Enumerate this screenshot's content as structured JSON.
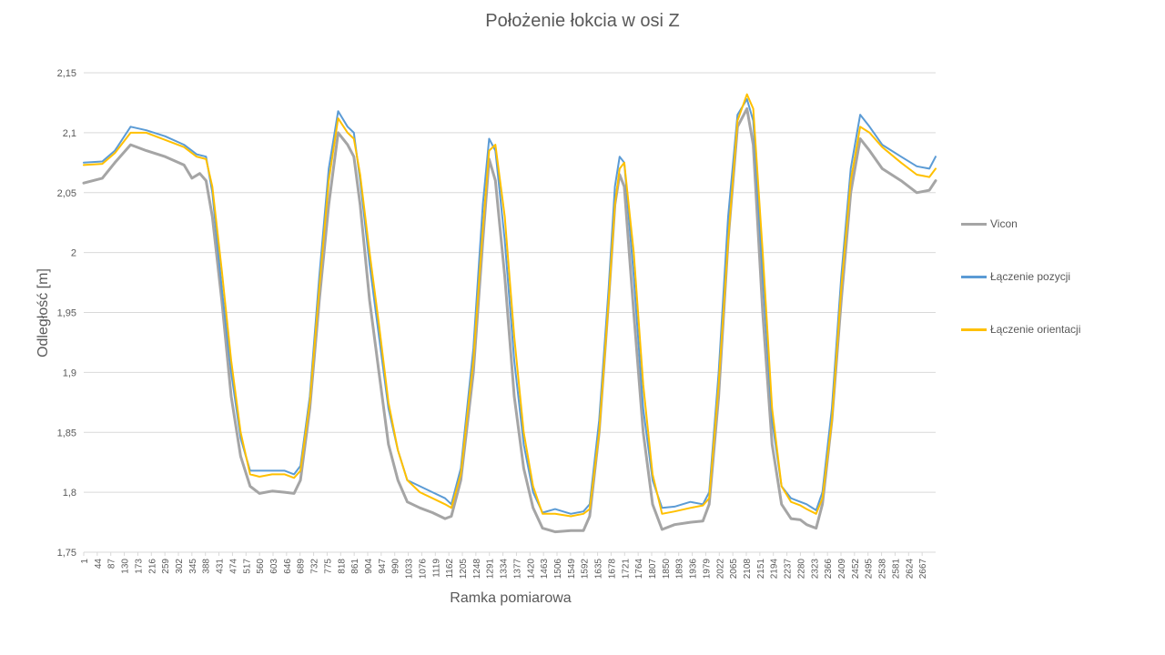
{
  "chart_data": {
    "type": "line",
    "title": "Położenie łokcia w osi Z",
    "xlabel": "Ramka pomiarowa",
    "ylabel": "Odległość [m]",
    "ylim": [
      1.75,
      2.15
    ],
    "xlim": [
      1,
      2710
    ],
    "yticks": [
      "1,75",
      "1,8",
      "1,85",
      "1,9",
      "1,95",
      "2",
      "2,05",
      "2,1",
      "2,15"
    ],
    "ytick_values": [
      1.75,
      1.8,
      1.85,
      1.9,
      1.95,
      2.0,
      2.05,
      2.1,
      2.15
    ],
    "xtick_labels": [
      "1",
      "44",
      "87",
      "130",
      "173",
      "216",
      "259",
      "302",
      "345",
      "388",
      "431",
      "474",
      "517",
      "560",
      "603",
      "646",
      "689",
      "732",
      "775",
      "818",
      "861",
      "904",
      "947",
      "990",
      "1033",
      "1076",
      "1119",
      "1162",
      "1205",
      "1248",
      "1291",
      "1334",
      "1377",
      "1420",
      "1463",
      "1506",
      "1549",
      "1592",
      "1635",
      "1678",
      "1721",
      "1764",
      "1807",
      "1850",
      "1893",
      "1936",
      "1979",
      "2022",
      "2065",
      "2108",
      "2151",
      "2194",
      "2237",
      "2280",
      "2323",
      "2366",
      "2409",
      "2452",
      "2495",
      "2538",
      "2581",
      "2624",
      "2667"
    ],
    "grid": true,
    "legend_position": "right",
    "series": [
      {
        "name": "Vicon",
        "color": "#a5a5a5",
        "points": [
          [
            1,
            2.058
          ],
          [
            60,
            2.062
          ],
          [
            100,
            2.075
          ],
          [
            150,
            2.09
          ],
          [
            200,
            2.085
          ],
          [
            260,
            2.08
          ],
          [
            320,
            2.073
          ],
          [
            345,
            2.062
          ],
          [
            370,
            2.066
          ],
          [
            390,
            2.06
          ],
          [
            410,
            2.03
          ],
          [
            440,
            1.96
          ],
          [
            470,
            1.88
          ],
          [
            500,
            1.83
          ],
          [
            530,
            1.805
          ],
          [
            560,
            1.799
          ],
          [
            600,
            1.801
          ],
          [
            640,
            1.8
          ],
          [
            670,
            1.799
          ],
          [
            690,
            1.81
          ],
          [
            720,
            1.87
          ],
          [
            750,
            1.96
          ],
          [
            780,
            2.04
          ],
          [
            810,
            2.1
          ],
          [
            840,
            2.09
          ],
          [
            860,
            2.08
          ],
          [
            880,
            2.04
          ],
          [
            910,
            1.96
          ],
          [
            940,
            1.9
          ],
          [
            970,
            1.84
          ],
          [
            1000,
            1.81
          ],
          [
            1030,
            1.792
          ],
          [
            1070,
            1.787
          ],
          [
            1110,
            1.783
          ],
          [
            1150,
            1.778
          ],
          [
            1170,
            1.78
          ],
          [
            1200,
            1.81
          ],
          [
            1240,
            1.9
          ],
          [
            1270,
            2.01
          ],
          [
            1290,
            2.078
          ],
          [
            1310,
            2.06
          ],
          [
            1340,
            1.98
          ],
          [
            1370,
            1.88
          ],
          [
            1400,
            1.82
          ],
          [
            1430,
            1.787
          ],
          [
            1460,
            1.77
          ],
          [
            1500,
            1.767
          ],
          [
            1550,
            1.768
          ],
          [
            1590,
            1.768
          ],
          [
            1610,
            1.78
          ],
          [
            1640,
            1.85
          ],
          [
            1670,
            1.96
          ],
          [
            1690,
            2.04
          ],
          [
            1705,
            2.065
          ],
          [
            1720,
            2.055
          ],
          [
            1750,
            1.95
          ],
          [
            1780,
            1.85
          ],
          [
            1810,
            1.79
          ],
          [
            1840,
            1.769
          ],
          [
            1880,
            1.773
          ],
          [
            1930,
            1.775
          ],
          [
            1970,
            1.776
          ],
          [
            1990,
            1.79
          ],
          [
            2020,
            1.88
          ],
          [
            2050,
            2.01
          ],
          [
            2080,
            2.105
          ],
          [
            2110,
            2.12
          ],
          [
            2130,
            2.09
          ],
          [
            2160,
            1.95
          ],
          [
            2190,
            1.84
          ],
          [
            2220,
            1.79
          ],
          [
            2250,
            1.778
          ],
          [
            2280,
            1.777
          ],
          [
            2300,
            1.773
          ],
          [
            2330,
            1.77
          ],
          [
            2350,
            1.79
          ],
          [
            2380,
            1.86
          ],
          [
            2410,
            1.96
          ],
          [
            2440,
            2.05
          ],
          [
            2470,
            2.095
          ],
          [
            2500,
            2.085
          ],
          [
            2540,
            2.07
          ],
          [
            2600,
            2.06
          ],
          [
            2650,
            2.05
          ],
          [
            2690,
            2.052
          ],
          [
            2710,
            2.06
          ]
        ]
      },
      {
        "name": "Łączenie pozycji",
        "color": "#5b9bd5",
        "points": [
          [
            1,
            2.075
          ],
          [
            60,
            2.076
          ],
          [
            100,
            2.085
          ],
          [
            150,
            2.105
          ],
          [
            200,
            2.102
          ],
          [
            260,
            2.097
          ],
          [
            320,
            2.09
          ],
          [
            360,
            2.082
          ],
          [
            390,
            2.08
          ],
          [
            410,
            2.05
          ],
          [
            440,
            1.97
          ],
          [
            470,
            1.9
          ],
          [
            500,
            1.845
          ],
          [
            530,
            1.818
          ],
          [
            560,
            1.818
          ],
          [
            600,
            1.818
          ],
          [
            640,
            1.818
          ],
          [
            670,
            1.815
          ],
          [
            690,
            1.822
          ],
          [
            720,
            1.88
          ],
          [
            750,
            1.98
          ],
          [
            780,
            2.07
          ],
          [
            810,
            2.118
          ],
          [
            840,
            2.105
          ],
          [
            860,
            2.1
          ],
          [
            880,
            2.06
          ],
          [
            910,
            1.99
          ],
          [
            940,
            1.93
          ],
          [
            970,
            1.87
          ],
          [
            1000,
            1.835
          ],
          [
            1030,
            1.81
          ],
          [
            1070,
            1.805
          ],
          [
            1110,
            1.8
          ],
          [
            1150,
            1.795
          ],
          [
            1170,
            1.79
          ],
          [
            1200,
            1.82
          ],
          [
            1240,
            1.92
          ],
          [
            1270,
            2.04
          ],
          [
            1290,
            2.095
          ],
          [
            1310,
            2.085
          ],
          [
            1340,
            2.01
          ],
          [
            1370,
            1.91
          ],
          [
            1400,
            1.84
          ],
          [
            1430,
            1.8
          ],
          [
            1460,
            1.783
          ],
          [
            1500,
            1.786
          ],
          [
            1550,
            1.782
          ],
          [
            1590,
            1.784
          ],
          [
            1610,
            1.79
          ],
          [
            1640,
            1.86
          ],
          [
            1670,
            1.97
          ],
          [
            1690,
            2.055
          ],
          [
            1705,
            2.08
          ],
          [
            1720,
            2.075
          ],
          [
            1750,
            1.98
          ],
          [
            1780,
            1.87
          ],
          [
            1810,
            1.81
          ],
          [
            1840,
            1.787
          ],
          [
            1880,
            1.788
          ],
          [
            1930,
            1.792
          ],
          [
            1970,
            1.79
          ],
          [
            1990,
            1.8
          ],
          [
            2020,
            1.9
          ],
          [
            2050,
            2.03
          ],
          [
            2080,
            2.115
          ],
          [
            2110,
            2.128
          ],
          [
            2130,
            2.11
          ],
          [
            2160,
            1.98
          ],
          [
            2190,
            1.86
          ],
          [
            2220,
            1.805
          ],
          [
            2250,
            1.795
          ],
          [
            2280,
            1.792
          ],
          [
            2300,
            1.79
          ],
          [
            2330,
            1.785
          ],
          [
            2350,
            1.8
          ],
          [
            2380,
            1.87
          ],
          [
            2410,
            1.98
          ],
          [
            2440,
            2.07
          ],
          [
            2470,
            2.115
          ],
          [
            2500,
            2.105
          ],
          [
            2540,
            2.09
          ],
          [
            2600,
            2.08
          ],
          [
            2650,
            2.072
          ],
          [
            2690,
            2.07
          ],
          [
            2710,
            2.08
          ]
        ]
      },
      {
        "name": "Łączenie orientacji",
        "color": "#ffc000",
        "points": [
          [
            1,
            2.073
          ],
          [
            60,
            2.074
          ],
          [
            100,
            2.083
          ],
          [
            150,
            2.1
          ],
          [
            200,
            2.1
          ],
          [
            260,
            2.094
          ],
          [
            320,
            2.088
          ],
          [
            360,
            2.08
          ],
          [
            390,
            2.078
          ],
          [
            410,
            2.055
          ],
          [
            440,
            1.985
          ],
          [
            470,
            1.91
          ],
          [
            500,
            1.85
          ],
          [
            530,
            1.815
          ],
          [
            560,
            1.813
          ],
          [
            600,
            1.815
          ],
          [
            640,
            1.815
          ],
          [
            670,
            1.812
          ],
          [
            690,
            1.818
          ],
          [
            720,
            1.875
          ],
          [
            750,
            1.97
          ],
          [
            780,
            2.06
          ],
          [
            810,
            2.112
          ],
          [
            840,
            2.1
          ],
          [
            860,
            2.095
          ],
          [
            880,
            2.065
          ],
          [
            910,
            2.0
          ],
          [
            940,
            1.94
          ],
          [
            970,
            1.875
          ],
          [
            1000,
            1.835
          ],
          [
            1030,
            1.81
          ],
          [
            1070,
            1.8
          ],
          [
            1110,
            1.795
          ],
          [
            1150,
            1.79
          ],
          [
            1170,
            1.787
          ],
          [
            1200,
            1.815
          ],
          [
            1240,
            1.91
          ],
          [
            1270,
            2.02
          ],
          [
            1290,
            2.085
          ],
          [
            1310,
            2.09
          ],
          [
            1340,
            2.03
          ],
          [
            1370,
            1.93
          ],
          [
            1400,
            1.85
          ],
          [
            1430,
            1.805
          ],
          [
            1460,
            1.782
          ],
          [
            1500,
            1.782
          ],
          [
            1550,
            1.78
          ],
          [
            1590,
            1.782
          ],
          [
            1610,
            1.786
          ],
          [
            1640,
            1.85
          ],
          [
            1670,
            1.96
          ],
          [
            1690,
            2.04
          ],
          [
            1705,
            2.07
          ],
          [
            1720,
            2.075
          ],
          [
            1750,
            2.0
          ],
          [
            1780,
            1.89
          ],
          [
            1810,
            1.815
          ],
          [
            1840,
            1.782
          ],
          [
            1880,
            1.784
          ],
          [
            1930,
            1.787
          ],
          [
            1970,
            1.789
          ],
          [
            1990,
            1.795
          ],
          [
            2020,
            1.89
          ],
          [
            2050,
            2.01
          ],
          [
            2080,
            2.11
          ],
          [
            2110,
            2.132
          ],
          [
            2130,
            2.12
          ],
          [
            2160,
            2.0
          ],
          [
            2190,
            1.87
          ],
          [
            2220,
            1.805
          ],
          [
            2250,
            1.792
          ],
          [
            2280,
            1.789
          ],
          [
            2300,
            1.786
          ],
          [
            2330,
            1.782
          ],
          [
            2350,
            1.795
          ],
          [
            2380,
            1.86
          ],
          [
            2410,
            1.97
          ],
          [
            2440,
            2.06
          ],
          [
            2470,
            2.105
          ],
          [
            2500,
            2.1
          ],
          [
            2540,
            2.088
          ],
          [
            2600,
            2.075
          ],
          [
            2650,
            2.065
          ],
          [
            2690,
            2.063
          ],
          [
            2710,
            2.07
          ]
        ]
      }
    ]
  }
}
